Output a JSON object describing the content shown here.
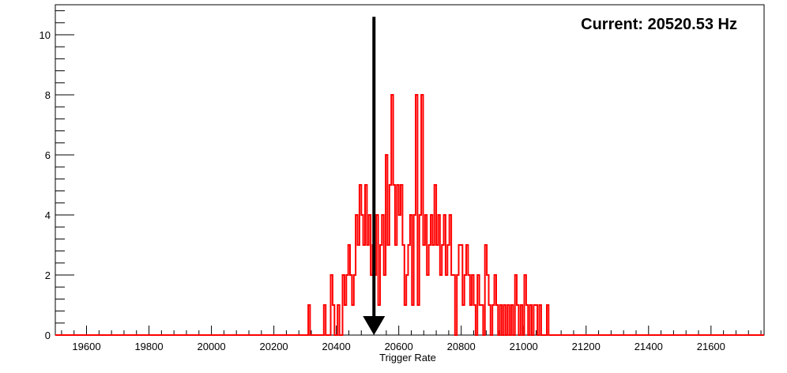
{
  "chart_data": {
    "type": "histogram",
    "title": "",
    "annotation": "Current: 20520.53 Hz",
    "xlabel": "Trigger Rate",
    "ylabel": "",
    "xlim": [
      19500,
      21770
    ],
    "ylim": [
      0,
      11
    ],
    "x_ticks": [
      19600,
      19800,
      20000,
      20200,
      20400,
      20600,
      20800,
      21000,
      21200,
      21400,
      21600
    ],
    "y_ticks": [
      0,
      2,
      4,
      6,
      8,
      10
    ],
    "arrow_x": 20520.53,
    "arrow_y_range": [
      10.6,
      0
    ],
    "line_color": "#ff0000",
    "arrow_color": "#000000",
    "series": [
      {
        "values": [
          [
            19500,
            0
          ],
          [
            20310,
            1
          ],
          [
            20316,
            0
          ],
          [
            20360,
            1
          ],
          [
            20366,
            0
          ],
          [
            20382,
            2
          ],
          [
            20388,
            1
          ],
          [
            20394,
            0
          ],
          [
            20404,
            1
          ],
          [
            20410,
            0
          ],
          [
            20420,
            2
          ],
          [
            20426,
            1
          ],
          [
            20432,
            2
          ],
          [
            20438,
            3
          ],
          [
            20444,
            2
          ],
          [
            20450,
            1
          ],
          [
            20456,
            2
          ],
          [
            20462,
            4
          ],
          [
            20468,
            3
          ],
          [
            20474,
            5
          ],
          [
            20480,
            4
          ],
          [
            20486,
            3
          ],
          [
            20492,
            5
          ],
          [
            20498,
            3
          ],
          [
            20504,
            4
          ],
          [
            20510,
            2
          ],
          [
            20516,
            3
          ],
          [
            20522,
            2
          ],
          [
            20528,
            4
          ],
          [
            20534,
            1
          ],
          [
            20540,
            3
          ],
          [
            20546,
            4
          ],
          [
            20552,
            2
          ],
          [
            20558,
            6
          ],
          [
            20564,
            3
          ],
          [
            20570,
            5
          ],
          [
            20576,
            8
          ],
          [
            20582,
            5
          ],
          [
            20588,
            3
          ],
          [
            20594,
            5
          ],
          [
            20600,
            4
          ],
          [
            20606,
            5
          ],
          [
            20612,
            3
          ],
          [
            20618,
            1
          ],
          [
            20624,
            2
          ],
          [
            20630,
            3
          ],
          [
            20636,
            4
          ],
          [
            20642,
            1
          ],
          [
            20648,
            4
          ],
          [
            20654,
            8
          ],
          [
            20660,
            1
          ],
          [
            20666,
            4
          ],
          [
            20672,
            8
          ],
          [
            20678,
            3
          ],
          [
            20684,
            4
          ],
          [
            20690,
            2
          ],
          [
            20696,
            3
          ],
          [
            20702,
            4
          ],
          [
            20708,
            3
          ],
          [
            20714,
            5
          ],
          [
            20720,
            3
          ],
          [
            20726,
            4
          ],
          [
            20732,
            2
          ],
          [
            20738,
            3
          ],
          [
            20744,
            4
          ],
          [
            20750,
            2
          ],
          [
            20756,
            3
          ],
          [
            20762,
            4
          ],
          [
            20768,
            2
          ],
          [
            20780,
            0
          ],
          [
            20786,
            2
          ],
          [
            20792,
            3
          ],
          [
            20804,
            1
          ],
          [
            20810,
            2
          ],
          [
            20816,
            3
          ],
          [
            20822,
            2
          ],
          [
            20828,
            1
          ],
          [
            20834,
            2
          ],
          [
            20840,
            1
          ],
          [
            20846,
            0
          ],
          [
            20852,
            2
          ],
          [
            20858,
            1
          ],
          [
            20870,
            0
          ],
          [
            20876,
            3
          ],
          [
            20882,
            2
          ],
          [
            20888,
            1
          ],
          [
            20894,
            0
          ],
          [
            20900,
            1
          ],
          [
            20906,
            2
          ],
          [
            20912,
            1
          ],
          [
            20918,
            0
          ],
          [
            20924,
            1
          ],
          [
            20930,
            0
          ],
          [
            20936,
            1
          ],
          [
            20942,
            0
          ],
          [
            20948,
            1
          ],
          [
            20954,
            0
          ],
          [
            20960,
            1
          ],
          [
            20966,
            0
          ],
          [
            20972,
            2
          ],
          [
            20978,
            1
          ],
          [
            20984,
            0
          ],
          [
            20990,
            1
          ],
          [
            20996,
            0
          ],
          [
            21002,
            2
          ],
          [
            21008,
            1
          ],
          [
            21014,
            0
          ],
          [
            21020,
            1
          ],
          [
            21026,
            0
          ],
          [
            21032,
            1
          ],
          [
            21044,
            0
          ],
          [
            21050,
            1
          ],
          [
            21056,
            0
          ],
          [
            21074,
            1
          ],
          [
            21080,
            0
          ],
          [
            21770,
            0
          ]
        ]
      }
    ]
  }
}
